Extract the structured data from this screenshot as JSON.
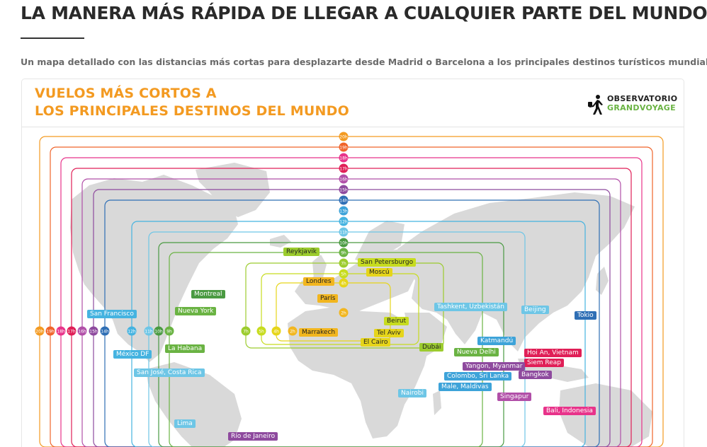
{
  "article": {
    "headline": "LA MANERA MÁS RÁPIDA DE LLEGAR A CUALQUIER PARTE DEL MUNDO",
    "subtitle": "Un mapa detallado con las distancias más cortas para desplazarte desde Madrid o Barcelona a los principales destinos turísticos mundiales"
  },
  "infographic": {
    "title_line1": "VUELOS MÁS CORTOS A",
    "title_line2": "LOS PRINCIPALES DESTINOS DEL MUNDO",
    "brand_line1": "OBSERVATORIO",
    "brand_line2": "GRANDVOYAGE",
    "colors": {
      "title": "#f39a21",
      "map_land": "#d9d9d9",
      "brand_green": "#6ab343"
    },
    "hour_scale_vertical": [
      "20h",
      "19h",
      "18h",
      "17h",
      "16h",
      "15h",
      "14h",
      "13h",
      "12h",
      "11h",
      "10h",
      "9h",
      "7h",
      "5h",
      "4h",
      "2h"
    ],
    "hour_scale_horizontal": [
      "20h",
      "19h",
      "18h",
      "17h",
      "16h",
      "15h",
      "14h",
      "12h",
      "11h",
      "10h",
      "9h",
      "7h",
      "5h",
      "4h",
      "2h"
    ],
    "destinations": [
      {
        "name": "Reykjavik",
        "color": "#9ccc2e"
      },
      {
        "name": "San Petersburgo",
        "color": "#c7dc1f"
      },
      {
        "name": "Moscú",
        "color": "#e6d51a"
      },
      {
        "name": "Londres",
        "color": "#f2b61f"
      },
      {
        "name": "París",
        "color": "#f2b61f"
      },
      {
        "name": "Montreal",
        "color": "#4a9a42"
      },
      {
        "name": "Nueva York",
        "color": "#6ab343"
      },
      {
        "name": "San Francisco",
        "color": "#45b3e0"
      },
      {
        "name": "Marrakech",
        "color": "#f2b61f"
      },
      {
        "name": "Beirut",
        "color": "#c7dc1f"
      },
      {
        "name": "Tel Aviv",
        "color": "#e6d51a"
      },
      {
        "name": "El Cairo",
        "color": "#e6d51a"
      },
      {
        "name": "Dubái",
        "color": "#9ccc2e"
      },
      {
        "name": "Tashkent, Uzbekistán",
        "color": "#6ec6e6"
      },
      {
        "name": "Beijing",
        "color": "#6ec6e6"
      },
      {
        "name": "Tokio",
        "color": "#2f6fb5"
      },
      {
        "name": "Katmandú",
        "color": "#3da3d9"
      },
      {
        "name": "Nueva Delhi",
        "color": "#6ab343"
      },
      {
        "name": "Hoi An, Vietnam",
        "color": "#e01f57"
      },
      {
        "name": "Siem Reap",
        "color": "#e01f57"
      },
      {
        "name": "Yangon, Myanmar",
        "color": "#8e4a9e"
      },
      {
        "name": "Bangkok",
        "color": "#8e4a9e"
      },
      {
        "name": "Colombo, Sri Lanka",
        "color": "#3da3d9"
      },
      {
        "name": "Male, Maldivas",
        "color": "#3da3d9"
      },
      {
        "name": "México DF",
        "color": "#45b3e0"
      },
      {
        "name": "La Habana",
        "color": "#6ab343"
      },
      {
        "name": "San José, Costa Rica",
        "color": "#6ec6e6"
      },
      {
        "name": "Nairobi",
        "color": "#6ec6e6"
      },
      {
        "name": "Singapur",
        "color": "#b14fa8"
      },
      {
        "name": "Bali, Indonesia",
        "color": "#e8338a"
      },
      {
        "name": "Lima",
        "color": "#6ec6e6"
      },
      {
        "name": "Río de Janeiro",
        "color": "#8e4a9e"
      }
    ]
  }
}
